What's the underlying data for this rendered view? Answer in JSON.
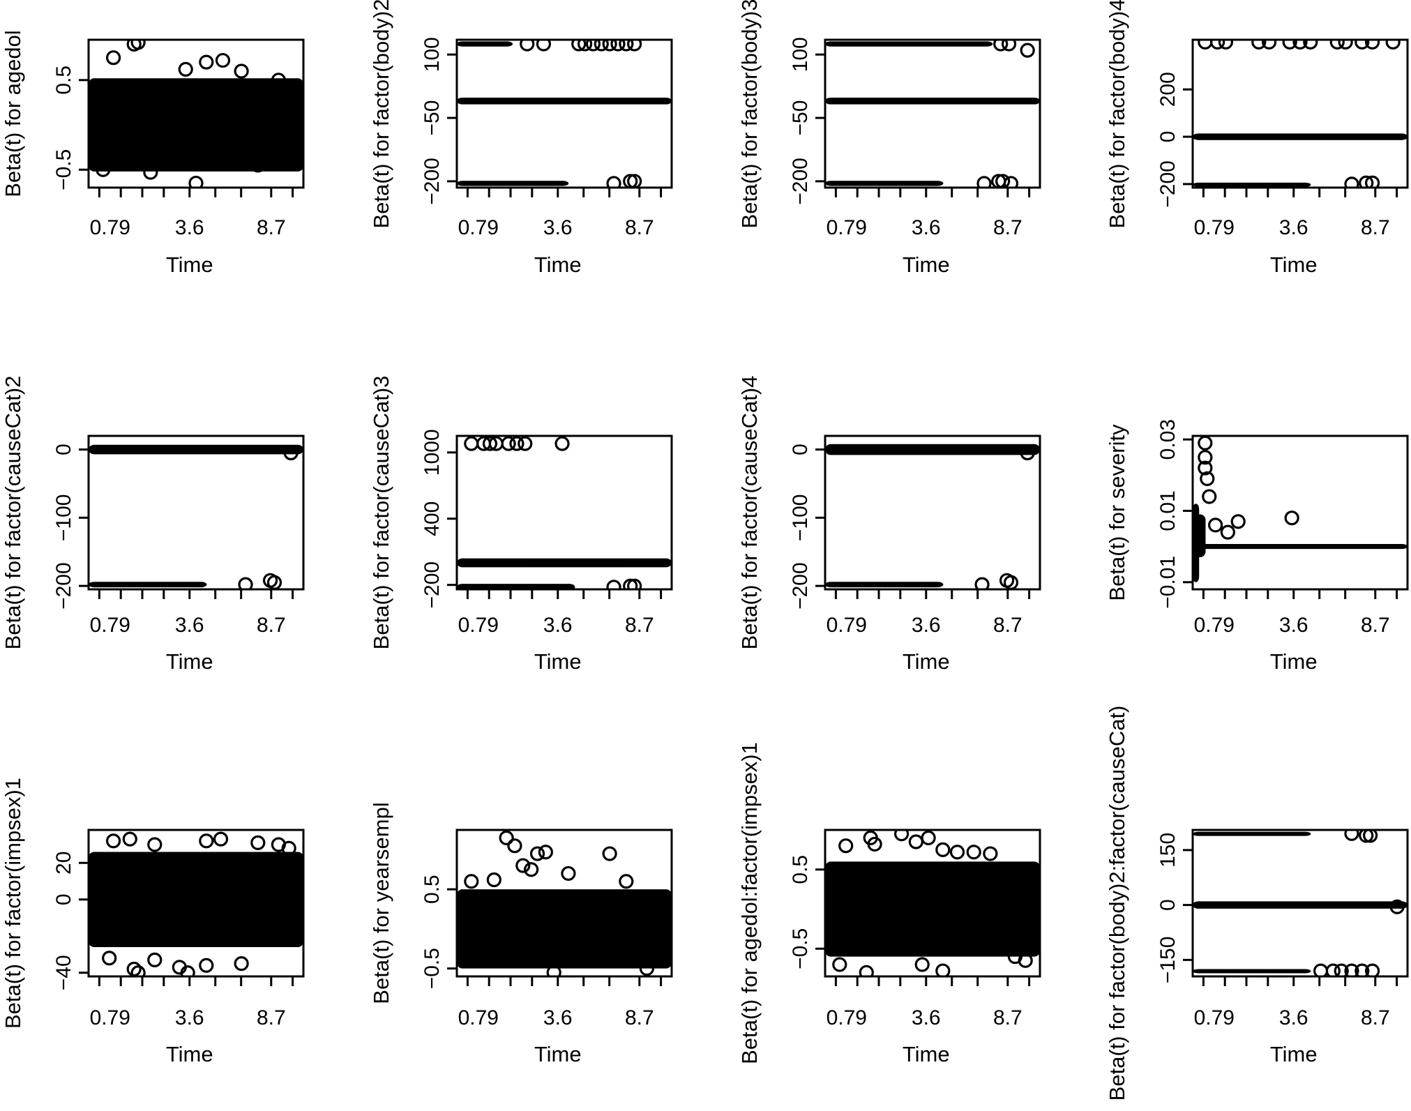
{
  "chart_data": [
    {
      "type": "scatter",
      "ylabel": "Beta(t) for agedol",
      "xlabel": "Time",
      "xticks": [
        "0.79",
        "3.6",
        "8.7"
      ],
      "yticks": [
        {
          "v": 0.5,
          "label": "0.5"
        },
        {
          "v": -0.5,
          "label": "−0.5"
        }
      ],
      "ylim": [
        -0.7,
        0.95
      ],
      "bands": [
        {
          "y": 0.0,
          "halfwidth": 0.52,
          "x_start": 0.0,
          "x_end": 1.0
        }
      ],
      "points": [
        [
          0.1,
          0.75
        ],
        [
          0.2,
          0.9
        ],
        [
          0.22,
          0.92
        ],
        [
          0.45,
          0.62
        ],
        [
          0.55,
          0.7
        ],
        [
          0.72,
          0.6
        ],
        [
          0.05,
          -0.5
        ],
        [
          0.28,
          -0.53
        ],
        [
          0.5,
          -0.65
        ],
        [
          0.8,
          -0.45
        ],
        [
          0.9,
          0.5
        ],
        [
          0.63,
          0.72
        ]
      ]
    },
    {
      "type": "scatter",
      "ylabel": "Beta(t) for factor(body)2",
      "xlabel": "Time",
      "xticks": [
        "0.79",
        "3.6",
        "8.7"
      ],
      "yticks": [
        {
          "v": 100,
          "label": "100"
        },
        {
          "v": -50,
          "label": "−50"
        },
        {
          "v": -200,
          "label": "−200"
        }
      ],
      "ylim": [
        -215,
        135
      ],
      "bands": [
        {
          "y": 125,
          "halfwidth": 6,
          "x_start": 0.0,
          "x_end": 0.26
        },
        {
          "y": -205,
          "halfwidth": 6,
          "x_start": 0.0,
          "x_end": 0.52
        },
        {
          "y": -10,
          "halfwidth": 8,
          "x_start": 0.0,
          "x_end": 1.0
        }
      ],
      "points": [
        [
          0.57,
          125
        ],
        [
          0.6,
          125
        ],
        [
          0.64,
          125
        ],
        [
          0.68,
          125
        ],
        [
          0.72,
          125
        ],
        [
          0.76,
          125
        ],
        [
          0.8,
          125
        ],
        [
          0.84,
          125
        ],
        [
          0.32,
          125
        ],
        [
          0.4,
          125
        ],
        [
          0.74,
          -205
        ],
        [
          0.82,
          -200
        ],
        [
          0.84,
          -200
        ]
      ]
    },
    {
      "type": "scatter",
      "ylabel": "Beta(t) for factor(body)3",
      "xlabel": "Time",
      "xticks": [
        "0.79",
        "3.6",
        "8.7"
      ],
      "yticks": [
        {
          "v": 100,
          "label": "100"
        },
        {
          "v": -50,
          "label": "−50"
        },
        {
          "v": -200,
          "label": "−200"
        }
      ],
      "ylim": [
        -215,
        135
      ],
      "bands": [
        {
          "y": 125,
          "halfwidth": 6,
          "x_start": 0.0,
          "x_end": 0.78
        },
        {
          "y": -205,
          "halfwidth": 6,
          "x_start": 0.0,
          "x_end": 0.55
        },
        {
          "y": -10,
          "halfwidth": 8,
          "x_start": 0.0,
          "x_end": 1.0
        }
      ],
      "points": [
        [
          0.83,
          125
        ],
        [
          0.87,
          125
        ],
        [
          0.96,
          110
        ],
        [
          0.75,
          -205
        ],
        [
          0.82,
          -200
        ],
        [
          0.84,
          -200
        ],
        [
          0.88,
          -205
        ]
      ]
    },
    {
      "type": "scatter",
      "ylabel": "Beta(t) for factor(body)4",
      "xlabel": "Time",
      "xticks": [
        "0.79",
        "3.6",
        "8.7"
      ],
      "yticks": [
        {
          "v": 200,
          "label": "200"
        },
        {
          "v": 0,
          "label": "0"
        },
        {
          "v": -200,
          "label": "−200"
        }
      ],
      "ylim": [
        -215,
        410
      ],
      "bands": [
        {
          "y": 0,
          "halfwidth": 14,
          "x_start": 0.0,
          "x_end": 1.0
        },
        {
          "y": -200,
          "halfwidth": 6,
          "x_start": 0.0,
          "x_end": 0.55
        }
      ],
      "points": [
        [
          0.04,
          400
        ],
        [
          0.1,
          400
        ],
        [
          0.14,
          400
        ],
        [
          0.3,
          400
        ],
        [
          0.35,
          400
        ],
        [
          0.45,
          400
        ],
        [
          0.5,
          400
        ],
        [
          0.55,
          400
        ],
        [
          0.68,
          400
        ],
        [
          0.72,
          400
        ],
        [
          0.8,
          400
        ],
        [
          0.85,
          400
        ],
        [
          0.95,
          400
        ],
        [
          0.75,
          -200
        ],
        [
          0.82,
          -195
        ],
        [
          0.85,
          -195
        ]
      ]
    },
    {
      "type": "scatter",
      "ylabel": "Beta(t) for factor(causeCat)2",
      "xlabel": "Time",
      "xticks": [
        "0.79",
        "3.6",
        "8.7"
      ],
      "yticks": [
        {
          "v": 0,
          "label": "0"
        },
        {
          "v": -100,
          "label": "−100"
        },
        {
          "v": -200,
          "label": "−200"
        }
      ],
      "ylim": [
        -205,
        20
      ],
      "bands": [
        {
          "y": 0,
          "halfwidth": 7,
          "x_start": 0.0,
          "x_end": 1.0
        },
        {
          "y": -198,
          "halfwidth": 4,
          "x_start": 0.0,
          "x_end": 0.55
        }
      ],
      "points": [
        [
          0.74,
          -198
        ],
        [
          0.86,
          -192
        ],
        [
          0.88,
          -195
        ],
        [
          0.96,
          -5
        ]
      ]
    },
    {
      "type": "scatter",
      "ylabel": "Beta(t) for factor(causeCat)3",
      "xlabel": "Time",
      "xticks": [
        "0.79",
        "3.6",
        "8.7"
      ],
      "yticks": [
        {
          "v": 1000,
          "label": "1000"
        },
        {
          "v": 400,
          "label": "400"
        },
        {
          "v": -200,
          "label": "−200"
        }
      ],
      "ylim": [
        -240,
        1150
      ],
      "bands": [
        {
          "y": 0,
          "halfwidth": 40,
          "x_start": 0.0,
          "x_end": 1.0
        },
        {
          "y": -220,
          "halfwidth": 30,
          "x_start": 0.0,
          "x_end": 0.55
        }
      ],
      "points": [
        [
          0.05,
          1080
        ],
        [
          0.11,
          1080
        ],
        [
          0.14,
          1080
        ],
        [
          0.17,
          1080
        ],
        [
          0.23,
          1080
        ],
        [
          0.27,
          1080
        ],
        [
          0.31,
          1080
        ],
        [
          0.49,
          1080
        ],
        [
          0.74,
          -220
        ],
        [
          0.82,
          -210
        ],
        [
          0.84,
          -210
        ]
      ]
    },
    {
      "type": "scatter",
      "ylabel": "Beta(t) for factor(causeCat)4",
      "xlabel": "Time",
      "xticks": [
        "0.79",
        "3.6",
        "8.7"
      ],
      "yticks": [
        {
          "v": 0,
          "label": "0"
        },
        {
          "v": -100,
          "label": "−100"
        },
        {
          "v": -200,
          "label": "−200"
        }
      ],
      "ylim": [
        -205,
        20
      ],
      "bands": [
        {
          "y": 0,
          "halfwidth": 8,
          "x_start": 0.0,
          "x_end": 1.0
        },
        {
          "y": -198,
          "halfwidth": 4,
          "x_start": 0.0,
          "x_end": 0.55
        }
      ],
      "points": [
        [
          0.74,
          -198
        ],
        [
          0.86,
          -192
        ],
        [
          0.88,
          -195
        ],
        [
          0.96,
          -5
        ]
      ]
    },
    {
      "type": "scatter",
      "ylabel": "Beta(t) for severity",
      "xlabel": "Time",
      "xticks": [
        "0.79",
        "3.6",
        "8.7"
      ],
      "yticks": [
        {
          "v": 0.03,
          "label": "0.03"
        },
        {
          "v": 0.01,
          "label": "0.01"
        },
        {
          "v": -0.01,
          "label": "−0.01"
        }
      ],
      "ylim": [
        -0.012,
        0.031
      ],
      "bands": [
        {
          "y": 0.0,
          "halfwidth": 0.0007,
          "x_start": 0.0,
          "x_end": 1.0
        },
        {
          "y": 0.001,
          "halfwidth": 0.011,
          "x_start": 0.0,
          "x_end": 0.03
        },
        {
          "y": 0.003,
          "halfwidth": 0.006,
          "x_start": 0.0,
          "x_end": 0.06
        }
      ],
      "points": [
        [
          0.04,
          0.029
        ],
        [
          0.04,
          0.025
        ],
        [
          0.04,
          0.022
        ],
        [
          0.05,
          0.019
        ],
        [
          0.06,
          0.014
        ],
        [
          0.09,
          0.006
        ],
        [
          0.15,
          0.004
        ],
        [
          0.2,
          0.007
        ],
        [
          0.46,
          0.008
        ]
      ]
    },
    {
      "type": "scatter",
      "ylabel": "Beta(t) for factor(impsex)1",
      "xlabel": "Time",
      "xticks": [
        "0.79",
        "3.6",
        "8.7"
      ],
      "yticks": [
        {
          "v": 20,
          "label": "20"
        },
        {
          "v": 0,
          "label": "0"
        },
        {
          "v": -40,
          "label": "−40"
        }
      ],
      "ylim": [
        -42,
        38
      ],
      "bands": [
        {
          "y": 0,
          "halfwidth": 26,
          "x_start": 0.0,
          "x_end": 1.0
        }
      ],
      "points": [
        [
          0.1,
          32
        ],
        [
          0.18,
          33
        ],
        [
          0.3,
          30
        ],
        [
          0.55,
          32
        ],
        [
          0.62,
          33
        ],
        [
          0.8,
          31
        ],
        [
          0.9,
          30
        ],
        [
          0.95,
          28
        ],
        [
          0.08,
          -32
        ],
        [
          0.2,
          -38
        ],
        [
          0.22,
          -40
        ],
        [
          0.3,
          -33
        ],
        [
          0.42,
          -37
        ],
        [
          0.46,
          -40
        ],
        [
          0.55,
          -36
        ],
        [
          0.72,
          -35
        ]
      ]
    },
    {
      "type": "scatter",
      "ylabel": "Beta(t) for yearsempl",
      "xlabel": "Time",
      "xticks": [
        "0.79",
        "3.6",
        "8.7"
      ],
      "yticks": [
        {
          "v": 0.5,
          "label": "0.5"
        },
        {
          "v": -0.5,
          "label": "−0.5"
        }
      ],
      "ylim": [
        -0.6,
        1.25
      ],
      "bands": [
        {
          "y": 0.0,
          "halfwidth": 0.5,
          "x_start": 0.0,
          "x_end": 1.0
        }
      ],
      "points": [
        [
          0.22,
          1.15
        ],
        [
          0.26,
          1.05
        ],
        [
          0.37,
          0.95
        ],
        [
          0.41,
          0.97
        ],
        [
          0.3,
          0.8
        ],
        [
          0.34,
          0.75
        ],
        [
          0.52,
          0.7
        ],
        [
          0.72,
          0.95
        ],
        [
          0.8,
          0.6
        ],
        [
          0.05,
          0.6
        ],
        [
          0.16,
          0.62
        ],
        [
          0.45,
          -0.55
        ],
        [
          0.9,
          -0.5
        ]
      ]
    },
    {
      "type": "scatter",
      "ylabel": "Beta(t) for agedol:factor(impsex)1",
      "xlabel": "Time",
      "xticks": [
        "0.79",
        "3.6",
        "8.7"
      ],
      "yticks": [
        {
          "v": 0.5,
          "label": "0.5"
        },
        {
          "v": -0.5,
          "label": "−0.5"
        }
      ],
      "ylim": [
        -0.85,
        1.0
      ],
      "bands": [
        {
          "y": 0.0,
          "halfwidth": 0.6,
          "x_start": 0.0,
          "x_end": 1.0
        }
      ],
      "points": [
        [
          0.08,
          0.8
        ],
        [
          0.2,
          0.9
        ],
        [
          0.22,
          0.82
        ],
        [
          0.35,
          0.95
        ],
        [
          0.42,
          0.85
        ],
        [
          0.48,
          0.9
        ],
        [
          0.55,
          0.75
        ],
        [
          0.62,
          0.72
        ],
        [
          0.7,
          0.72
        ],
        [
          0.78,
          0.7
        ],
        [
          0.05,
          -0.7
        ],
        [
          0.18,
          -0.8
        ],
        [
          0.45,
          -0.7
        ],
        [
          0.55,
          -0.78
        ],
        [
          0.9,
          -0.6
        ],
        [
          0.95,
          -0.65
        ]
      ]
    },
    {
      "type": "scatter",
      "ylabel": "Beta(t) for factor(body)2:factor(causeCat)",
      "xlabel": "Time",
      "xticks": [
        "0.79",
        "3.6",
        "8.7"
      ],
      "yticks": [
        {
          "v": 150,
          "label": "150"
        },
        {
          "v": 0,
          "label": "0"
        },
        {
          "v": -150,
          "label": "−150"
        }
      ],
      "ylim": [
        -195,
        205
      ],
      "bands": [
        {
          "y": 195,
          "halfwidth": 5,
          "x_start": 0.0,
          "x_end": 0.55
        },
        {
          "y": 0,
          "halfwidth": 10,
          "x_start": 0.0,
          "x_end": 1.0
        },
        {
          "y": -180,
          "halfwidth": 5,
          "x_start": 0.0,
          "x_end": 0.55
        }
      ],
      "points": [
        [
          0.75,
          195
        ],
        [
          0.82,
          190
        ],
        [
          0.84,
          190
        ],
        [
          0.6,
          -180
        ],
        [
          0.66,
          -180
        ],
        [
          0.7,
          -180
        ],
        [
          0.75,
          -180
        ],
        [
          0.8,
          -180
        ],
        [
          0.85,
          -180
        ],
        [
          0.97,
          -5
        ]
      ]
    }
  ]
}
